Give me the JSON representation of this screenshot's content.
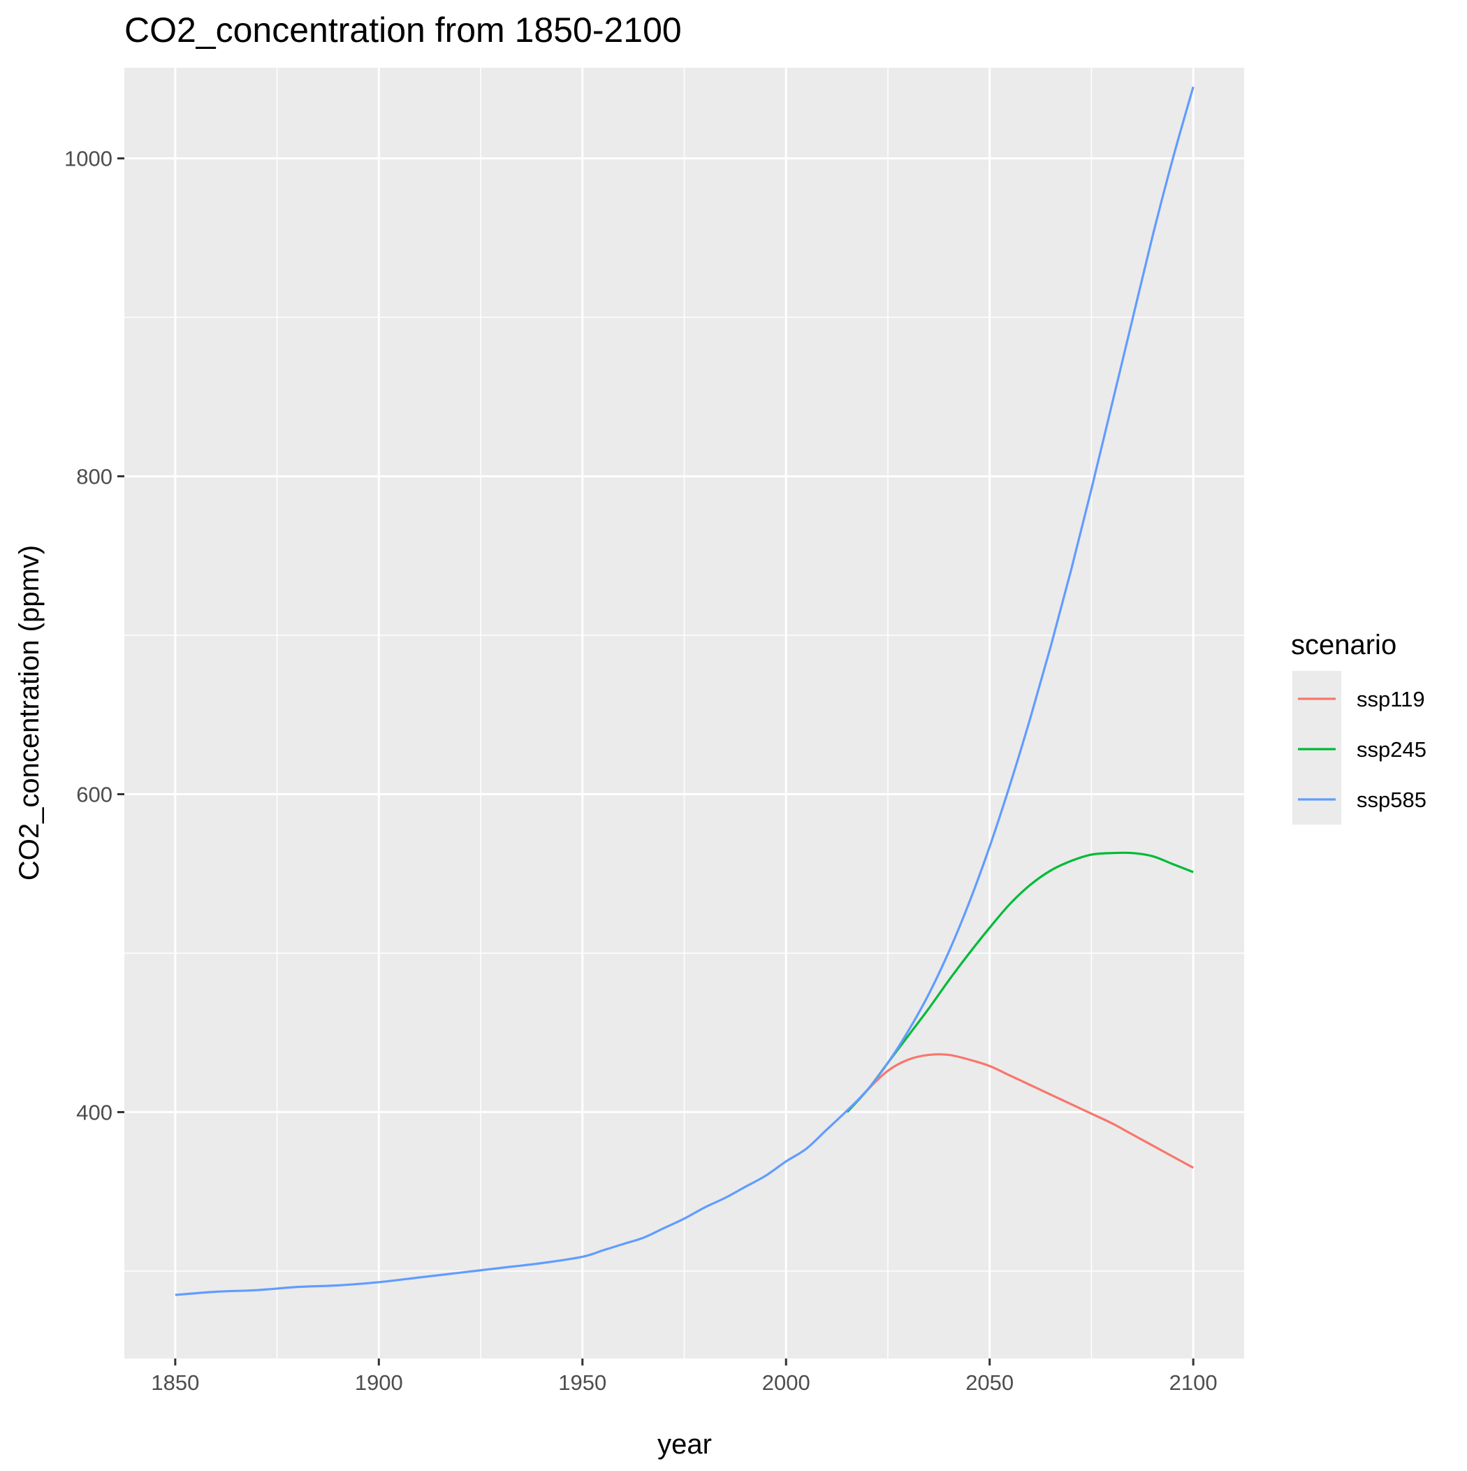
{
  "chart_data": {
    "type": "line",
    "title": "CO2_concentration from 1850-2100",
    "xlabel": "year",
    "ylabel": "CO2_concentration (ppmv)",
    "xlim": [
      1837.5,
      2112.5
    ],
    "ylim": [
      245,
      1057
    ],
    "x_ticks": [
      1850,
      1900,
      1950,
      2000,
      2050,
      2100
    ],
    "x_tick_labels": [
      "1850",
      "1900",
      "1950",
      "2000",
      "2050",
      "2100"
    ],
    "y_ticks": [
      400,
      600,
      800,
      1000
    ],
    "y_tick_labels": [
      "400",
      "600",
      "800",
      "1000"
    ],
    "grid": true,
    "legend": {
      "title": "scenario",
      "position": "right"
    },
    "series": [
      {
        "name": "ssp119",
        "color": "#F8766D",
        "x": [
          2015,
          2020,
          2025,
          2030,
          2035,
          2040,
          2045,
          2050,
          2055,
          2060,
          2065,
          2070,
          2075,
          2080,
          2085,
          2090,
          2095,
          2100
        ],
        "y": [
          400,
          414,
          426,
          433,
          436,
          436,
          433,
          429,
          423,
          417,
          411,
          405,
          399,
          393,
          386,
          379,
          372,
          365
        ]
      },
      {
        "name": "ssp245",
        "color": "#00BA38",
        "x": [
          2015,
          2020,
          2025,
          2030,
          2035,
          2040,
          2045,
          2050,
          2055,
          2060,
          2065,
          2070,
          2075,
          2080,
          2085,
          2090,
          2095,
          2100
        ],
        "y": [
          400,
          414,
          431,
          448,
          465,
          483,
          500,
          516,
          531,
          543,
          552,
          558,
          562,
          563,
          563,
          561,
          556,
          551
        ]
      },
      {
        "name": "ssp585",
        "color": "#619CFF",
        "x": [
          1850,
          1860,
          1870,
          1880,
          1890,
          1900,
          1910,
          1920,
          1930,
          1940,
          1950,
          1955,
          1960,
          1965,
          1970,
          1975,
          1980,
          1985,
          1990,
          1995,
          2000,
          2005,
          2010,
          2015,
          2020,
          2025,
          2030,
          2035,
          2040,
          2045,
          2050,
          2055,
          2060,
          2065,
          2070,
          2075,
          2080,
          2085,
          2090,
          2095,
          2100
        ],
        "y": [
          285,
          287,
          288,
          290,
          291,
          293,
          296,
          299,
          302,
          305,
          309,
          313,
          317,
          321,
          327,
          333,
          340,
          346,
          353,
          360,
          369,
          377,
          389,
          401,
          414,
          431,
          451,
          474,
          501,
          532,
          567,
          606,
          648,
          693,
          741,
          792,
          845,
          898,
          951,
          1000,
          1045
        ]
      }
    ]
  }
}
